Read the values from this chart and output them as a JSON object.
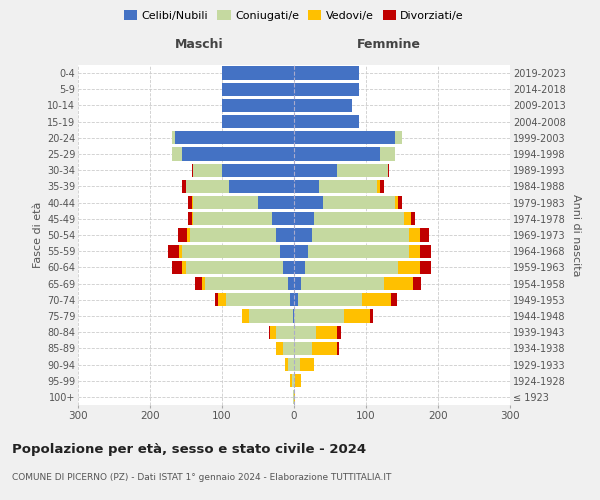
{
  "age_groups": [
    "100+",
    "95-99",
    "90-94",
    "85-89",
    "80-84",
    "75-79",
    "70-74",
    "65-69",
    "60-64",
    "55-59",
    "50-54",
    "45-49",
    "40-44",
    "35-39",
    "30-34",
    "25-29",
    "20-24",
    "15-19",
    "10-14",
    "5-9",
    "0-4"
  ],
  "birth_years": [
    "≤ 1923",
    "1924-1928",
    "1929-1933",
    "1934-1938",
    "1939-1943",
    "1944-1948",
    "1949-1953",
    "1954-1958",
    "1959-1963",
    "1964-1968",
    "1969-1973",
    "1974-1978",
    "1979-1983",
    "1984-1988",
    "1989-1993",
    "1994-1998",
    "1999-2003",
    "2004-2008",
    "2009-2013",
    "2014-2018",
    "2019-2023"
  ],
  "male": {
    "celibi": [
      0,
      0,
      0,
      0,
      0,
      2,
      5,
      8,
      15,
      20,
      25,
      30,
      50,
      90,
      100,
      155,
      165,
      100,
      100,
      100,
      100
    ],
    "coniugati": [
      1,
      3,
      8,
      15,
      25,
      60,
      90,
      115,
      135,
      135,
      120,
      110,
      90,
      60,
      40,
      15,
      5,
      0,
      0,
      0,
      0
    ],
    "vedovi": [
      0,
      2,
      5,
      10,
      8,
      10,
      10,
      5,
      5,
      5,
      4,
      2,
      2,
      0,
      0,
      0,
      0,
      0,
      0,
      0,
      0
    ],
    "divorziati": [
      0,
      0,
      0,
      0,
      2,
      0,
      5,
      10,
      15,
      15,
      12,
      5,
      5,
      5,
      2,
      0,
      0,
      0,
      0,
      0,
      0
    ]
  },
  "female": {
    "celibi": [
      0,
      0,
      0,
      0,
      0,
      0,
      5,
      10,
      15,
      20,
      25,
      28,
      40,
      35,
      60,
      120,
      140,
      90,
      80,
      90,
      90
    ],
    "coniugati": [
      0,
      2,
      8,
      25,
      30,
      70,
      90,
      115,
      130,
      140,
      135,
      125,
      100,
      80,
      70,
      20,
      10,
      0,
      0,
      0,
      0
    ],
    "vedovi": [
      2,
      8,
      20,
      35,
      30,
      35,
      40,
      40,
      30,
      15,
      15,
      10,
      5,
      5,
      0,
      0,
      0,
      0,
      0,
      0,
      0
    ],
    "divorziati": [
      0,
      0,
      0,
      2,
      5,
      5,
      8,
      12,
      15,
      15,
      12,
      5,
      5,
      5,
      2,
      0,
      0,
      0,
      0,
      0,
      0
    ]
  },
  "colors": {
    "celibi": "#4472c4",
    "coniugati": "#c5d9a0",
    "vedovi": "#ffc000",
    "divorziati": "#c00000"
  },
  "legend_labels": [
    "Celibi/Nubili",
    "Coniugati/e",
    "Vedovi/e",
    "Divorziati/e"
  ],
  "xlim": 300,
  "title": "Popolazione per età, sesso e stato civile - 2024",
  "subtitle": "COMUNE DI PICERNO (PZ) - Dati ISTAT 1° gennaio 2024 - Elaborazione TUTTITALIA.IT",
  "xlabel_left": "Maschi",
  "xlabel_right": "Femmine",
  "ylabel_left": "Fasce di età",
  "ylabel_right": "Anni di nascita",
  "bg_color": "#f0f0f0",
  "plot_bg": "#ffffff"
}
